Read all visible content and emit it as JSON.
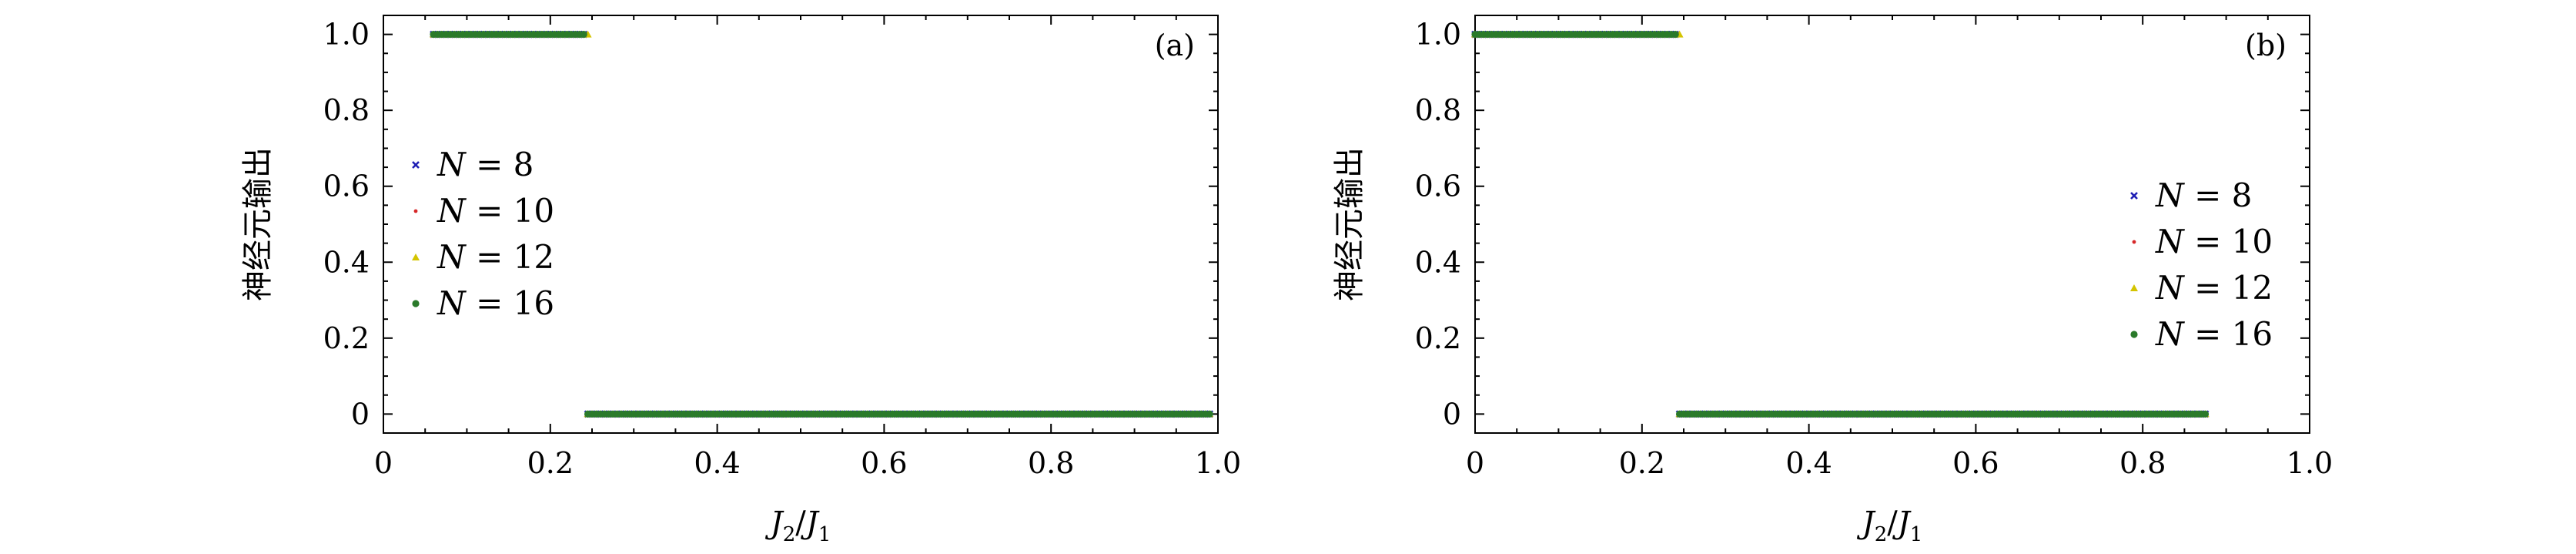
{
  "chart_data": [
    {
      "type": "scatter",
      "panel_label": "(a)",
      "xlabel_main": "J",
      "xlabel_sub1": "2",
      "xlabel_sep": "/",
      "xlabel_main2": "J",
      "xlabel_sub2": "1",
      "ylabel": "神经元输出",
      "xlim": [
        0,
        1.0
      ],
      "ylim": [
        -0.05,
        1.05
      ],
      "xticks": [
        0,
        0.2,
        0.4,
        0.6,
        0.8,
        1.0
      ],
      "xticklabels": [
        "0",
        "0.2",
        "0.4",
        "0.6",
        "0.8",
        "1.0"
      ],
      "yticks": [
        0,
        0.2,
        0.4,
        0.6,
        0.8,
        1.0
      ],
      "yticklabels": [
        "0",
        "0.2",
        "0.4",
        "0.6",
        "0.8",
        "1.0"
      ],
      "grid": false,
      "legend_position": "center-left",
      "series": [
        {
          "name": "N = 8",
          "color": "#1f1fb4",
          "marker": "x",
          "segments": [
            {
              "x_start": 0.06,
              "x_end": 0.24,
              "y": 1
            },
            {
              "x_start": 0.245,
              "x_end": 0.99,
              "y": 0
            }
          ]
        },
        {
          "name": "N = 10",
          "color": "#d62728",
          "marker": "dot",
          "segments": [
            {
              "x_start": 0.06,
              "x_end": 0.24,
              "y": 1
            },
            {
              "x_start": 0.245,
              "x_end": 0.99,
              "y": 0
            }
          ]
        },
        {
          "name": "N = 12",
          "color": "#d4c400",
          "marker": "triangle",
          "segments": [
            {
              "x_start": 0.06,
              "x_end": 0.245,
              "y": 1
            },
            {
              "x_start": 0.245,
              "x_end": 0.99,
              "y": 0
            }
          ]
        },
        {
          "name": "N = 16",
          "color": "#2a7a2a",
          "marker": "circle",
          "segments": [
            {
              "x_start": 0.06,
              "x_end": 0.24,
              "y": 1
            },
            {
              "x_start": 0.245,
              "x_end": 0.99,
              "y": 0
            }
          ]
        }
      ]
    },
    {
      "type": "scatter",
      "panel_label": "(b)",
      "xlabel_main": "J",
      "xlabel_sub1": "2",
      "xlabel_sep": "/",
      "xlabel_main2": "J",
      "xlabel_sub2": "1",
      "ylabel": "神经元输出",
      "xlim": [
        0,
        1.0
      ],
      "ylim": [
        -0.05,
        1.05
      ],
      "xticks": [
        0,
        0.2,
        0.4,
        0.6,
        0.8,
        1.0
      ],
      "xticklabels": [
        "0",
        "0.2",
        "0.4",
        "0.6",
        "0.8",
        "1.0"
      ],
      "yticks": [
        0,
        0.2,
        0.4,
        0.6,
        0.8,
        1.0
      ],
      "yticklabels": [
        "0",
        "0.2",
        "0.4",
        "0.6",
        "0.8",
        "1.0"
      ],
      "grid": false,
      "legend_position": "center-right",
      "series": [
        {
          "name": "N = 8",
          "color": "#1f1fb4",
          "marker": "x",
          "segments": [
            {
              "x_start": 0.0,
              "x_end": 0.24,
              "y": 1
            },
            {
              "x_start": 0.245,
              "x_end": 0.875,
              "y": 0
            }
          ]
        },
        {
          "name": "N = 10",
          "color": "#d62728",
          "marker": "dot",
          "segments": [
            {
              "x_start": 0.0,
              "x_end": 0.24,
              "y": 1
            },
            {
              "x_start": 0.245,
              "x_end": 0.875,
              "y": 0
            }
          ]
        },
        {
          "name": "N = 12",
          "color": "#d4c400",
          "marker": "triangle",
          "segments": [
            {
              "x_start": 0.0,
              "x_end": 0.245,
              "y": 1
            },
            {
              "x_start": 0.245,
              "x_end": 0.875,
              "y": 0
            }
          ]
        },
        {
          "name": "N = 16",
          "color": "#2a7a2a",
          "marker": "circle",
          "segments": [
            {
              "x_start": 0.0,
              "x_end": 0.24,
              "y": 1
            },
            {
              "x_start": 0.245,
              "x_end": 0.875,
              "y": 0
            }
          ]
        }
      ]
    }
  ]
}
